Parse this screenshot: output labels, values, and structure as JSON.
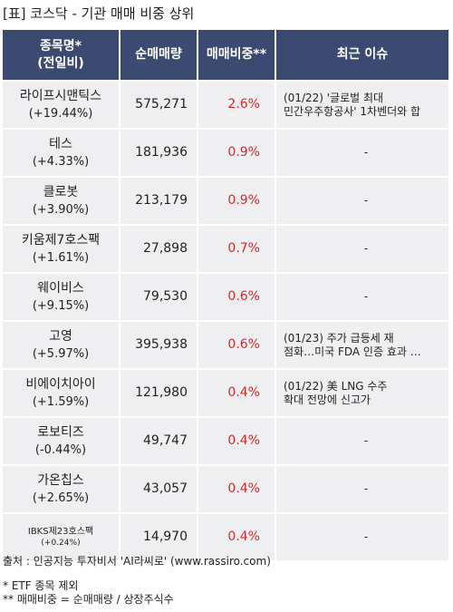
{
  "title": "[표] 코스닥 - 기관 매매 비중 상위",
  "headers": {
    "name": "종목명*\n(전일비)",
    "volume": "순매매량",
    "ratio": "매매비중**",
    "issue": "최근 이슈"
  },
  "rows": [
    {
      "name": "라이프시맨틱스",
      "change": "(+19.44%)",
      "volume": "575,271",
      "ratio": "2.6%",
      "issue": "(01/22) '글로벌 최대\n민간우주항공사' 1차벤더와 합"
    },
    {
      "name": "테스",
      "change": "(+4.33%)",
      "volume": "181,936",
      "ratio": "0.9%",
      "issue": "-"
    },
    {
      "name": "클로봇",
      "change": "(+3.90%)",
      "volume": "213,179",
      "ratio": "0.9%",
      "issue": "-"
    },
    {
      "name": "키움제7호스팩",
      "change": "(+1.61%)",
      "volume": "27,898",
      "ratio": "0.7%",
      "issue": "-"
    },
    {
      "name": "웨이비스",
      "change": "(+9.15%)",
      "volume": "79,530",
      "ratio": "0.6%",
      "issue": "-"
    },
    {
      "name": "고영",
      "change": "(+5.97%)",
      "volume": "395,938",
      "ratio": "0.6%",
      "issue": "(01/23) 주가 급등세 재\n점화…미국 FDA 인증 효과 …"
    },
    {
      "name": "비에이치아이",
      "change": "(+1.59%)",
      "volume": "121,980",
      "ratio": "0.4%",
      "issue": "(01/22) 美 LNG 수주\n 확대 전망에 신고가"
    },
    {
      "name": "로보티즈",
      "change": "(-0.44%)",
      "volume": "49,747",
      "ratio": "0.4%",
      "issue": "-"
    },
    {
      "name": "가온칩스",
      "change": "(+2.65%)",
      "volume": "43,057",
      "ratio": "0.4%",
      "issue": "-"
    },
    {
      "name": "IBKS제23호스팩",
      "change": "(+0.24%)",
      "volume": "14,970",
      "ratio": "0.4%",
      "issue": "-"
    }
  ],
  "footer": {
    "source": "출처 : 인공지능 투자비서 'AI라씨로' (www.rassiro.com)",
    "note1": "* ETF 종목 제외",
    "note2": "** 매매비중 = 순매매량 / 상장주식수"
  },
  "colors": {
    "header_bg": "#3b4a70",
    "row_bg": "#efeff1",
    "ratio_text": "#d42a2a"
  }
}
